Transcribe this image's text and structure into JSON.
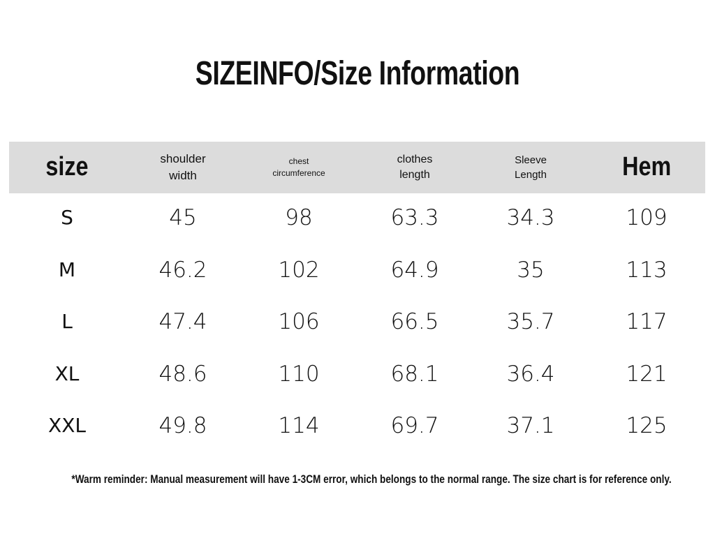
{
  "header": {
    "title": "SIZEINFO/Size Information"
  },
  "table": {
    "columns": [
      "size",
      "shoulder width",
      "chest circumference",
      "clothes length",
      "Sleeve Length",
      "Hem"
    ],
    "rows": [
      [
        "S",
        45,
        98,
        63.3,
        34.3,
        109
      ],
      [
        "M",
        46.2,
        102,
        64.9,
        35,
        113
      ],
      [
        "L",
        47.4,
        106,
        66.5,
        35.7,
        117
      ],
      [
        "XL",
        48.6,
        110,
        68.1,
        36.4,
        121
      ],
      [
        "XXL",
        49.8,
        114,
        69.7,
        37.1,
        125
      ]
    ]
  },
  "footnote": "*Warm reminder: Manual measurement will have 1-3CM error, which belongs to the normal range. The size chart is for reference only."
}
